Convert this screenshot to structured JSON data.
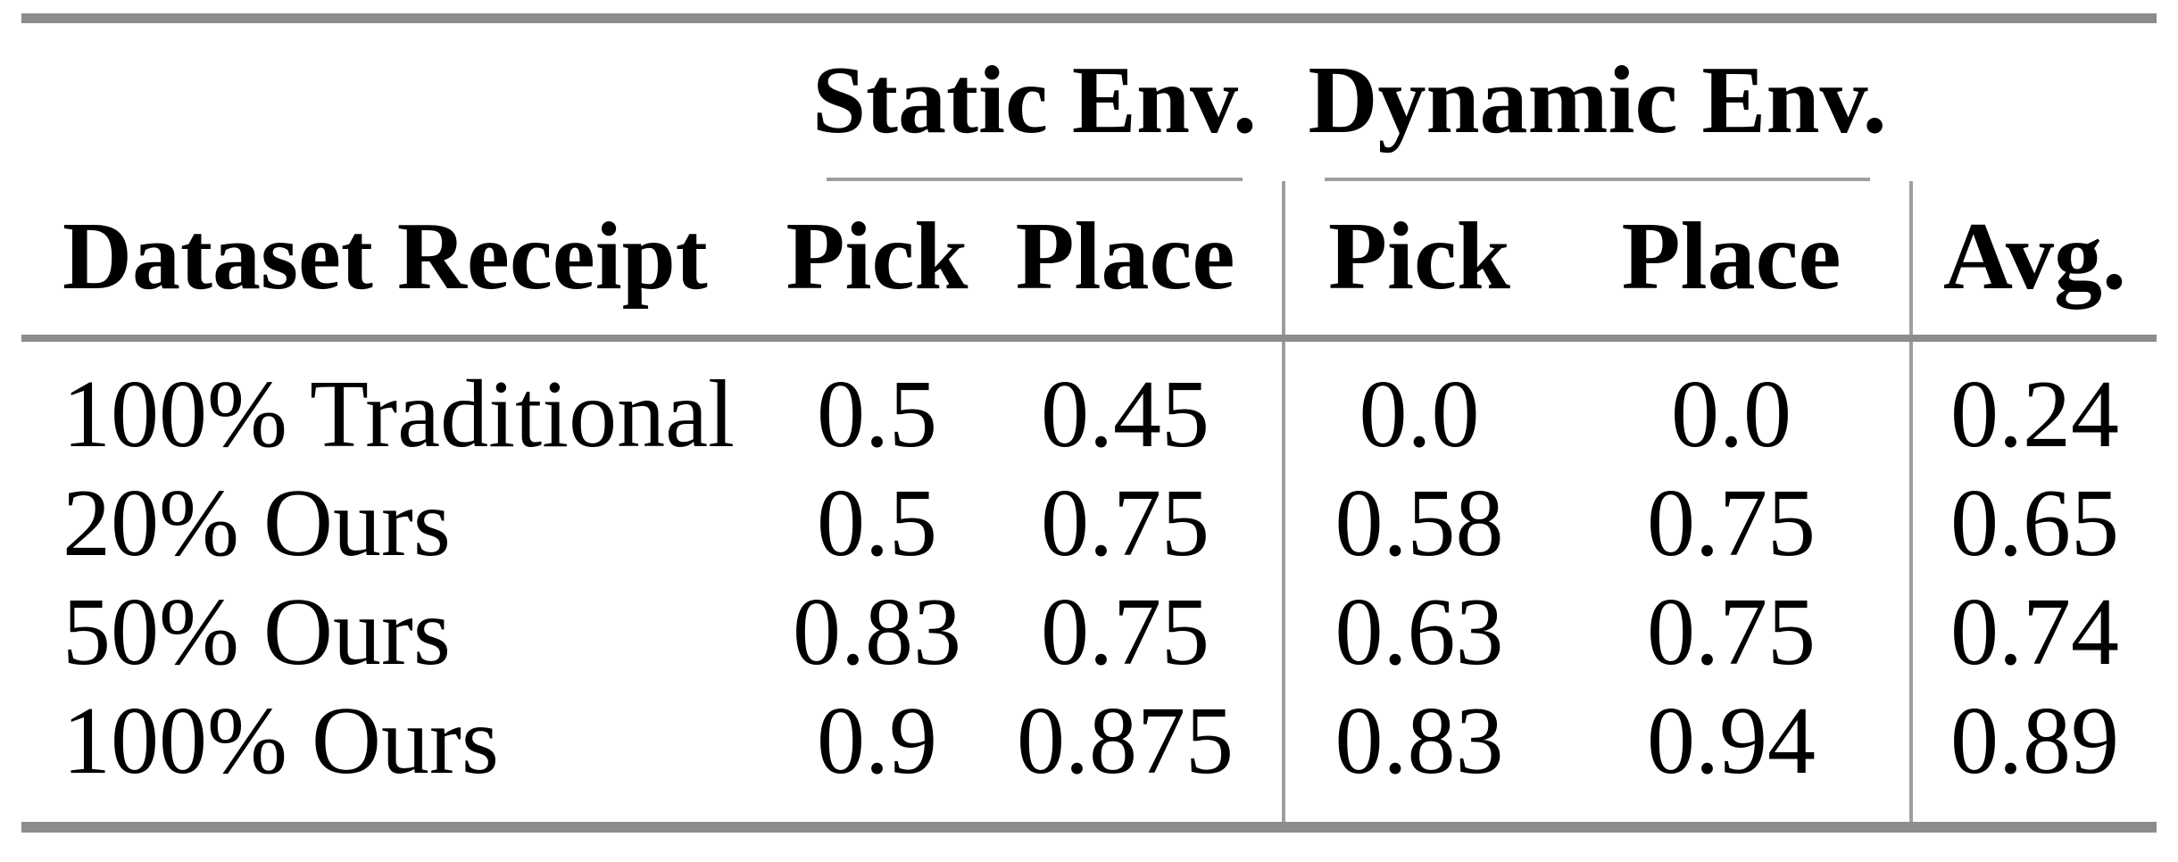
{
  "table": {
    "group_headers": {
      "static": "Static Env.",
      "dynamic": "Dynamic Env."
    },
    "column_headers": {
      "dataset": "Dataset Receipt",
      "static_pick": "Pick",
      "static_place": "Place",
      "dynamic_pick": "Pick",
      "dynamic_place": "Place",
      "avg": "Avg."
    },
    "rows": [
      {
        "label": "100% Traditional",
        "static_pick": "0.5",
        "static_place": "0.45",
        "dynamic_pick": "0.0",
        "dynamic_place": "0.0",
        "avg": "0.24"
      },
      {
        "label": "20% Ours",
        "static_pick": "0.5",
        "static_place": "0.75",
        "dynamic_pick": "0.58",
        "dynamic_place": "0.75",
        "avg": "0.65"
      },
      {
        "label": "50% Ours",
        "static_pick": "0.83",
        "static_place": "0.75",
        "dynamic_pick": "0.63",
        "dynamic_place": "0.75",
        "avg": "0.74"
      },
      {
        "label": "100% Ours",
        "static_pick": "0.9",
        "static_place": "0.875",
        "dynamic_pick": "0.83",
        "dynamic_place": "0.94",
        "avg": "0.89"
      }
    ],
    "colors": {
      "rule_heavy": "#8c8c8c",
      "rule_light": "#9e9e9e",
      "text": "#000000",
      "background": "#ffffff"
    }
  }
}
